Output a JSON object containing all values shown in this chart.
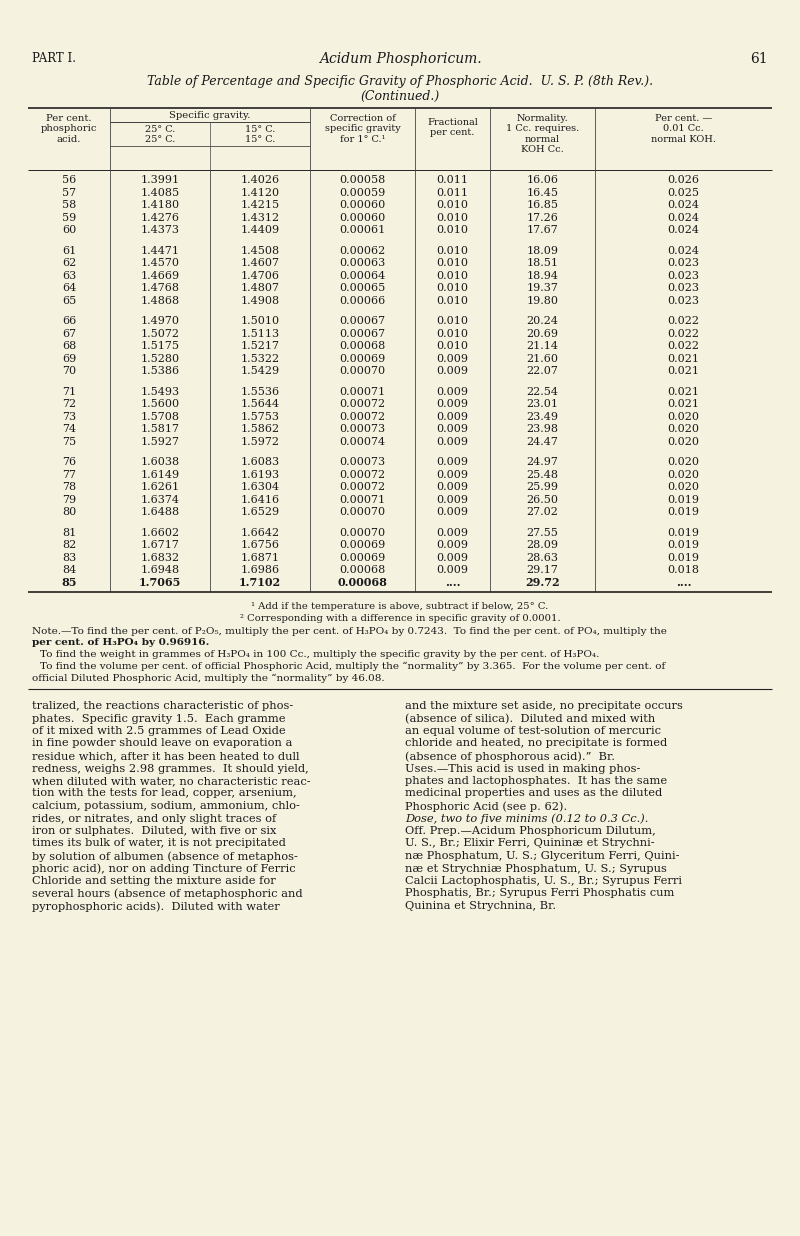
{
  "bg_color": "#f5f2e0",
  "text_color": "#1a1a1a",
  "header_text": "PART I.",
  "center_header": "Acidum Phosphoricum.",
  "page_num": "61",
  "table_title_line1": "Table of Percentage and Specific Gravity of Phosphoric Acid.  U. S. P. (8th Rev.).",
  "table_title_line2": "(Continued.)",
  "table_data": [
    [
      56,
      "1.3991",
      "1.4026",
      "0.00058",
      "0.011",
      "16.06",
      "0.026"
    ],
    [
      57,
      "1.4085",
      "1.4120",
      "0.00059",
      "0.011",
      "16.45",
      "0.025"
    ],
    [
      58,
      "1.4180",
      "1.4215",
      "0.00060",
      "0.010",
      "16.85",
      "0.024"
    ],
    [
      59,
      "1.4276",
      "1.4312",
      "0.00060",
      "0.010",
      "17.26",
      "0.024"
    ],
    [
      60,
      "1.4373",
      "1.4409",
      "0.00061",
      "0.010",
      "17.67",
      "0.024"
    ],
    [
      61,
      "1.4471",
      "1.4508",
      "0.00062",
      "0.010",
      "18.09",
      "0.024"
    ],
    [
      62,
      "1.4570",
      "1.4607",
      "0.00063",
      "0.010",
      "18.51",
      "0.023"
    ],
    [
      63,
      "1.4669",
      "1.4706",
      "0.00064",
      "0.010",
      "18.94",
      "0.023"
    ],
    [
      64,
      "1.4768",
      "1.4807",
      "0.00065",
      "0.010",
      "19.37",
      "0.023"
    ],
    [
      65,
      "1.4868",
      "1.4908",
      "0.00066",
      "0.010",
      "19.80",
      "0.023"
    ],
    [
      66,
      "1.4970",
      "1.5010",
      "0.00067",
      "0.010",
      "20.24",
      "0.022"
    ],
    [
      67,
      "1.5072",
      "1.5113",
      "0.00067",
      "0.010",
      "20.69",
      "0.022"
    ],
    [
      68,
      "1.5175",
      "1.5217",
      "0.00068",
      "0.010",
      "21.14",
      "0.022"
    ],
    [
      69,
      "1.5280",
      "1.5322",
      "0.00069",
      "0.009",
      "21.60",
      "0.021"
    ],
    [
      70,
      "1.5386",
      "1.5429",
      "0.00070",
      "0.009",
      "22.07",
      "0.021"
    ],
    [
      71,
      "1.5493",
      "1.5536",
      "0.00071",
      "0.009",
      "22.54",
      "0.021"
    ],
    [
      72,
      "1.5600",
      "1.5644",
      "0.00072",
      "0.009",
      "23.01",
      "0.021"
    ],
    [
      73,
      "1.5708",
      "1.5753",
      "0.00072",
      "0.009",
      "23.49",
      "0.020"
    ],
    [
      74,
      "1.5817",
      "1.5862",
      "0.00073",
      "0.009",
      "23.98",
      "0.020"
    ],
    [
      75,
      "1.5927",
      "1.5972",
      "0.00074",
      "0.009",
      "24.47",
      "0.020"
    ],
    [
      76,
      "1.6038",
      "1.6083",
      "0.00073",
      "0.009",
      "24.97",
      "0.020"
    ],
    [
      77,
      "1.6149",
      "1.6193",
      "0.00072",
      "0.009",
      "25.48",
      "0.020"
    ],
    [
      78,
      "1.6261",
      "1.6304",
      "0.00072",
      "0.009",
      "25.99",
      "0.020"
    ],
    [
      79,
      "1.6374",
      "1.6416",
      "0.00071",
      "0.009",
      "26.50",
      "0.019"
    ],
    [
      80,
      "1.6488",
      "1.6529",
      "0.00070",
      "0.009",
      "27.02",
      "0.019"
    ],
    [
      81,
      "1.6602",
      "1.6642",
      "0.00070",
      "0.009",
      "27.55",
      "0.019"
    ],
    [
      82,
      "1.6717",
      "1.6756",
      "0.00069",
      "0.009",
      "28.09",
      "0.019"
    ],
    [
      83,
      "1.6832",
      "1.6871",
      "0.00069",
      "0.009",
      "28.63",
      "0.019"
    ],
    [
      84,
      "1.6948",
      "1.6986",
      "0.00068",
      "0.009",
      "29.17",
      "0.018"
    ],
    [
      85,
      "1.7065",
      "1.7102",
      "0.00068",
      "....",
      "29.72",
      "...."
    ]
  ],
  "footnote1": "¹ Add if the temperature is above, subtract if below, 25° C.",
  "footnote2": "² Corresponding with a difference in specific gravity of 0.0001.",
  "footnote3a": "Note.—To find the per cent. of P₂O₅, multiply the per cent. of H₃PO₄ by 0.7243.  To find the per cent. of PO₄, multiply the",
  "footnote3b": "per cent. of H₃PO₄ by 0.96916.",
  "footnote4": "To find the weight in grammes of H₃PO₄ in 100 Cc., multiply the specific gravity by the per cent. of H₃PO₄.",
  "footnote5a": "To find the volume per cent. of official Phosphoric Acid, multiply the “normality” by 3.365.  For the volume per cent. of",
  "footnote5b": "official Diluted Phosphoric Acid, multiply the “normality” by 46.08.",
  "body_col1": [
    [
      "tralized, the reactions characteristic of phos-",
      "normal"
    ],
    [
      "phates.  Specific gravity 1.5.  Each gramme",
      "normal"
    ],
    [
      "of it mixed with 2.5 grammes of Lead Oxide",
      "normal"
    ],
    [
      "in fine powder should leave on evaporation a",
      "normal"
    ],
    [
      "residue which, after it has been heated to dull",
      "normal"
    ],
    [
      "redness, weighs 2.98 grammes.  It should yield,",
      "normal"
    ],
    [
      "when diluted with water, no characteristic reac-",
      "normal"
    ],
    [
      "tion with the tests for lead, copper, arsenium,",
      "normal"
    ],
    [
      "calcium, potassium, sodium, ammonium, chlo-",
      "normal"
    ],
    [
      "rides, or nitrates, and only slight traces of",
      "normal"
    ],
    [
      "iron or sulphates.  Diluted, with five or six",
      "normal"
    ],
    [
      "times its bulk of water, it is not precipitated",
      "normal"
    ],
    [
      "by solution of albumen (absence of metaphos-",
      "normal"
    ],
    [
      "phoric acid), nor on adding Tincture of Ferric",
      "normal"
    ],
    [
      "Chloride and setting the mixture aside for",
      "normal"
    ],
    [
      "several hours (absence of metaphosphoric and",
      "normal"
    ],
    [
      "pyrophosphoric acids).  Diluted with water",
      "normal"
    ]
  ],
  "body_col2": [
    [
      "and the mixture set aside, no precipitate occurs",
      "normal"
    ],
    [
      "(absence of silica).  Diluted and mixed with",
      "normal"
    ],
    [
      "an equal volume of test-solution of mercuric",
      "normal"
    ],
    [
      "chloride and heated, no precipitate is formed",
      "normal"
    ],
    [
      "(absence of phosphorous acid).”  Br.",
      "normal"
    ],
    [
      "Uses.—This acid is used in making phos-",
      "normal"
    ],
    [
      "phates and lactophosphates.  It has the same",
      "normal"
    ],
    [
      "medicinal properties and uses as the diluted",
      "normal"
    ],
    [
      "Phosphoric Acid (see p. 62).",
      "normal"
    ],
    [
      "Dose, two to five minims (0.12 to 0.3 Cc.).",
      "italic"
    ],
    [
      "Off. Prep.—Acidum Phosphoricum Dilutum,",
      "normal"
    ],
    [
      "U. S., Br.; Elixir Ferri, Quininæ et Strychni-",
      "normal"
    ],
    [
      "næ Phosphatum, U. S.; Glyceritum Ferri, Quini-",
      "normal"
    ],
    [
      "næ et Strychniæ Phosphatum, U. S.; Syrupus",
      "normal"
    ],
    [
      "Calcii Lactophosphatis, U. S., Br.; Syrupus Ferri",
      "normal"
    ],
    [
      "Phosphatis, Br.; Syrupus Ferri Phosphatis cum",
      "normal"
    ],
    [
      "Quinina et Strychnina, Br.",
      "normal"
    ]
  ]
}
